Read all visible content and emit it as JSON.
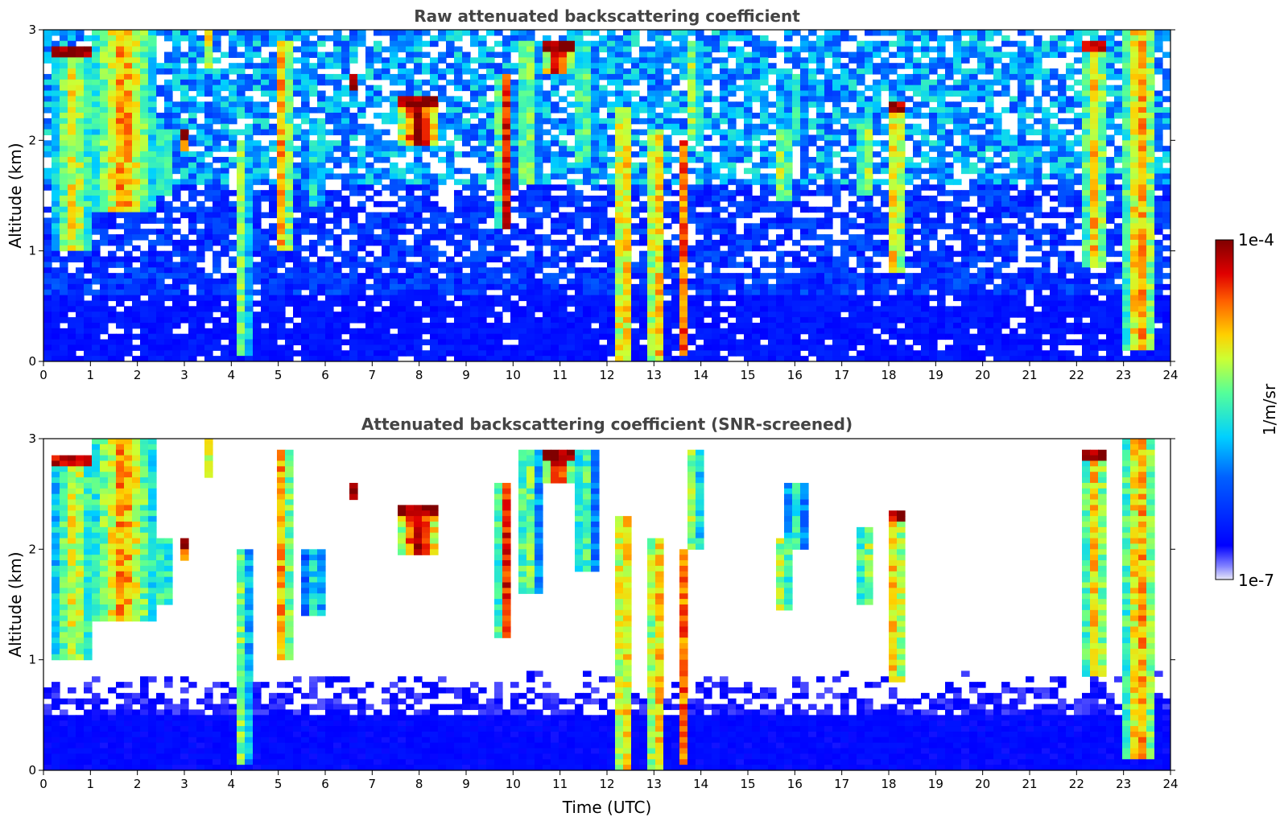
{
  "chart_data": [
    {
      "type": "heatmap",
      "title": "Raw attenuated backscattering coefficient",
      "xlabel": "",
      "ylabel": "Altitude (km)",
      "xlim": [
        0,
        24
      ],
      "ylim": [
        0,
        3
      ],
      "x_ticks": [
        "0",
        "1",
        "2",
        "3",
        "4",
        "5",
        "6",
        "7",
        "8",
        "9",
        "10",
        "11",
        "12",
        "13",
        "14",
        "15",
        "16",
        "17",
        "18",
        "19",
        "20",
        "21",
        "22",
        "23",
        "24"
      ],
      "y_ticks": [
        "0",
        "1",
        "2",
        "3"
      ],
      "grid": false,
      "screened": false
    },
    {
      "type": "heatmap",
      "title": "Attenuated backscattering coefficient (SNR-screened)",
      "xlabel": "Time (UTC)",
      "ylabel": "Altitude (km)",
      "xlim": [
        0,
        24
      ],
      "ylim": [
        0,
        3
      ],
      "x_ticks": [
        "0",
        "1",
        "2",
        "3",
        "4",
        "5",
        "6",
        "7",
        "8",
        "9",
        "10",
        "11",
        "12",
        "13",
        "14",
        "15",
        "16",
        "17",
        "18",
        "19",
        "20",
        "21",
        "22",
        "23",
        "24"
      ],
      "y_ticks": [
        "0",
        "1",
        "2",
        "3"
      ],
      "grid": false,
      "screened": true
    }
  ],
  "colorbar": {
    "label": "1/m/sr",
    "min_label": "1e-7",
    "max_label": "1e-4",
    "scale": "log",
    "colormap": "jet",
    "colors": [
      "#e8e8f8",
      "#0000ff",
      "#00d0ff",
      "#aaff55",
      "#ffd000",
      "#ff3000",
      "#800000"
    ]
  },
  "features": {
    "clouds": [
      {
        "t": 0.65,
        "top": 2.85,
        "base": 1.0,
        "w": 0.9,
        "peak": 0.7,
        "cap": 0.95
      },
      {
        "t": 1.7,
        "top": 3.0,
        "base": 1.35,
        "w": 1.3,
        "peak": 0.8
      },
      {
        "t": 2.55,
        "top": 2.1,
        "base": 1.5,
        "w": 0.5,
        "peak": 0.6
      },
      {
        "t": 3.05,
        "top": 2.1,
        "base": 1.9,
        "w": 0.2,
        "peak": 0.95,
        "cap": 1.0
      },
      {
        "t": 3.55,
        "top": 3.0,
        "base": 2.65,
        "w": 0.2,
        "peak": 0.8
      },
      {
        "t": 4.25,
        "top": 2.0,
        "base": 0.05,
        "w": 0.25,
        "peak": 0.7
      },
      {
        "t": 5.1,
        "top": 2.9,
        "base": 1.0,
        "w": 0.35,
        "peak": 0.85
      },
      {
        "t": 5.8,
        "top": 2.0,
        "base": 1.4,
        "w": 0.5,
        "peak": 0.5
      },
      {
        "t": 6.6,
        "top": 2.6,
        "base": 2.45,
        "w": 0.12,
        "peak": 1.0,
        "cap": 1.0
      },
      {
        "t": 8.0,
        "top": 2.4,
        "base": 1.95,
        "w": 0.9,
        "peak": 1.0,
        "cap": 1.0
      },
      {
        "t": 9.85,
        "top": 2.6,
        "base": 1.2,
        "w": 0.35,
        "peak": 0.9
      },
      {
        "t": 10.3,
        "top": 2.9,
        "base": 1.6,
        "w": 0.5,
        "peak": 0.65
      },
      {
        "t": 10.95,
        "top": 2.9,
        "base": 2.6,
        "w": 0.6,
        "peak": 1.0,
        "cap": 1.0
      },
      {
        "t": 11.5,
        "top": 2.9,
        "base": 1.8,
        "w": 0.5,
        "peak": 0.6
      },
      {
        "t": 12.35,
        "top": 2.3,
        "base": 0.0,
        "w": 0.3,
        "peak": 0.9
      },
      {
        "t": 13.05,
        "top": 2.1,
        "base": 0.0,
        "w": 0.35,
        "peak": 0.85
      },
      {
        "t": 13.6,
        "top": 2.0,
        "base": 0.05,
        "w": 0.25,
        "peak": 0.9
      },
      {
        "t": 13.85,
        "top": 2.9,
        "base": 2.0,
        "w": 0.3,
        "peak": 0.7
      },
      {
        "t": 15.75,
        "top": 2.1,
        "base": 1.45,
        "w": 0.3,
        "peak": 0.75
      },
      {
        "t": 16.0,
        "top": 2.6,
        "base": 2.0,
        "w": 0.5,
        "peak": 0.5
      },
      {
        "t": 17.5,
        "top": 2.2,
        "base": 1.5,
        "w": 0.25,
        "peak": 0.8
      },
      {
        "t": 18.15,
        "top": 2.35,
        "base": 0.8,
        "w": 0.45,
        "peak": 0.8,
        "cap": 0.95
      },
      {
        "t": 22.4,
        "top": 2.9,
        "base": 0.85,
        "w": 0.6,
        "peak": 0.75,
        "cap": 0.95
      },
      {
        "t": 23.35,
        "top": 3.0,
        "base": 0.1,
        "w": 0.75,
        "peak": 0.8
      }
    ]
  }
}
